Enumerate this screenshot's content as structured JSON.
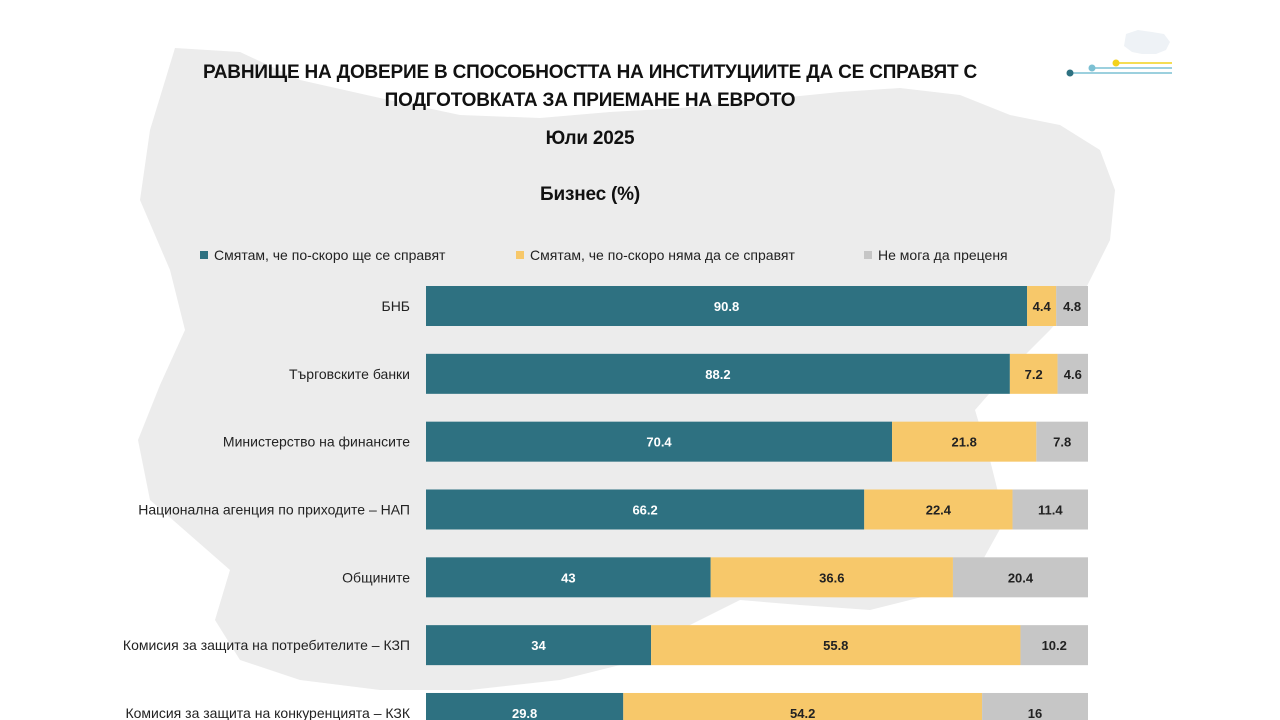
{
  "header": {
    "title_line1": "РАВНИЩЕ НА ДОВЕРИЕ В СПОСОБНОСТТА НА ИНСТИТУЦИИТЕ ДА СЕ СПРАВЯТ С",
    "title_line2": "ПОДГОТОВКАТА ЗА ПРИЕМАНЕ НА ЕВРОТО",
    "period": "Юли 2025",
    "subtitle": "Бизнес (%)"
  },
  "colors": {
    "positive": "#2e7181",
    "negative": "#f7c86a",
    "unknown": "#c6c6c6",
    "map": "#ececec",
    "logo_line": "#7cc0d3",
    "logo_dot_yellow": "#f2d21c"
  },
  "chart_data": {
    "type": "bar",
    "orientation": "horizontal",
    "stacked": true,
    "xlim": [
      0,
      100
    ],
    "legend_position": "top",
    "grid": false,
    "categories": [
      "БНБ",
      "Търговските банки",
      "Министерство на финансите",
      "Национална агенция по приходите – НАП",
      "Общините",
      "Комисия за защита на потребителите – КЗП",
      "Комисия за защита на конкуренцията – КЗК"
    ],
    "series": [
      {
        "name": "Смятам, че по-скоро ще се справят",
        "values": [
          90.8,
          88.2,
          70.4,
          66.2,
          43,
          34,
          29.8
        ]
      },
      {
        "name": "Смятам, че по-скоро няма да се справят",
        "values": [
          4.4,
          7.2,
          21.8,
          22.4,
          36.6,
          55.8,
          54.2
        ]
      },
      {
        "name": "Не мога да преценя",
        "values": [
          4.8,
          4.6,
          7.8,
          11.4,
          20.4,
          10.2,
          16
        ]
      }
    ]
  }
}
